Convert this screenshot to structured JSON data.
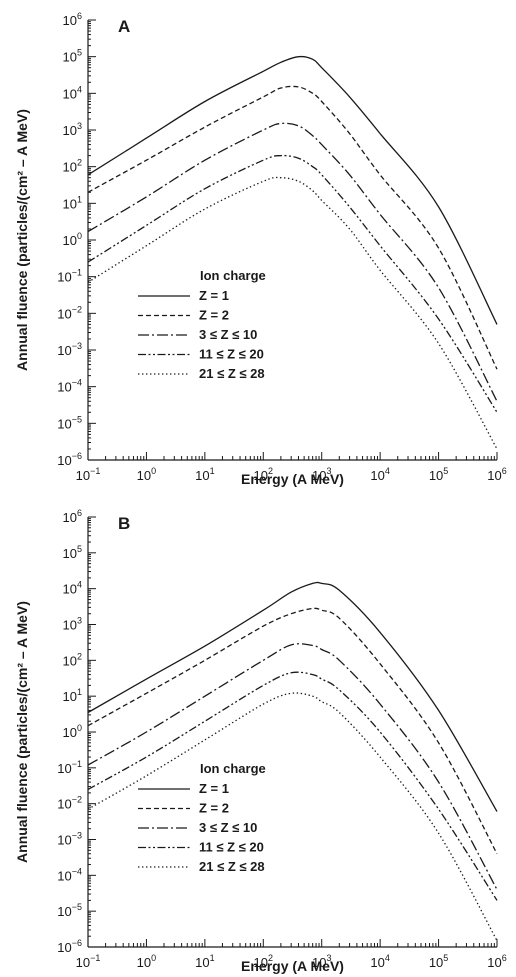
{
  "chart_data": [
    {
      "type": "line",
      "panel_label": "A",
      "xlabel": "Energy (A MeV)",
      "ylabel": "Annual fluence (particles/(cm² – A MeV)",
      "x_scale": "log",
      "y_scale": "log",
      "xlim": [
        0.1,
        1000000
      ],
      "ylim": [
        1e-06,
        1000000
      ],
      "x_ticks": [
        "10^-1",
        "10^0",
        "10^1",
        "10^2",
        "10^3",
        "10^4",
        "10^5",
        "10^6"
      ],
      "y_ticks": [
        "10^-6",
        "10^-5",
        "10^-4",
        "10^-3",
        "10^-2",
        "10^-1",
        "10^0",
        "10^1",
        "10^2",
        "10^3",
        "10^4",
        "10^5",
        "10^6"
      ],
      "grid": false,
      "legend": {
        "title": "Ion charge",
        "placement": "lower-left"
      },
      "series": [
        {
          "name": "Z = 1",
          "style": "solid",
          "x": [
            0.1,
            1,
            10,
            100,
            200,
            400,
            700,
            1000,
            3000,
            10000,
            100000,
            1000000
          ],
          "y": [
            60,
            600,
            6000,
            40000,
            70000,
            100000,
            85000,
            50000,
            8000,
            800,
            8,
            0.005
          ]
        },
        {
          "name": "Z = 2",
          "style": "dashed",
          "x": [
            0.1,
            1,
            10,
            100,
            200,
            400,
            700,
            1000,
            3000,
            10000,
            100000,
            1000000
          ],
          "y": [
            20,
            150,
            1200,
            8000,
            14000,
            15000,
            10000,
            6000,
            800,
            60,
            0.6,
            0.0003
          ]
        },
        {
          "name": "3 ≤ Z ≤ 10",
          "style": "long-dash-dot",
          "x": [
            0.1,
            1,
            10,
            100,
            200,
            400,
            700,
            1000,
            3000,
            10000,
            100000,
            1000000
          ],
          "y": [
            1.7,
            15,
            150,
            1000,
            1500,
            1300,
            700,
            400,
            60,
            5,
            0.05,
            4e-05
          ]
        },
        {
          "name": "11 ≤ Z ≤ 20",
          "style": "dash-dot-dot",
          "x": [
            0.1,
            1,
            10,
            100,
            200,
            400,
            700,
            1000,
            3000,
            10000,
            100000,
            1000000
          ],
          "y": [
            0.25,
            2.5,
            25,
            150,
            200,
            170,
            100,
            60,
            8,
            0.7,
            0.007,
            2e-05
          ]
        },
        {
          "name": "21 ≤ Z ≤ 28",
          "style": "dotted",
          "x": [
            0.1,
            1,
            10,
            100,
            200,
            400,
            700,
            1000,
            3000,
            10000,
            100000,
            1000000
          ],
          "y": [
            0.07,
            0.7,
            7,
            40,
            50,
            40,
            22,
            12,
            2,
            0.15,
            0.0015,
            2e-06
          ]
        }
      ]
    },
    {
      "type": "line",
      "panel_label": "B",
      "xlabel": "Energy (A MeV)",
      "ylabel": "Annual fluence (particles/(cm² – A MeV)",
      "x_scale": "log",
      "y_scale": "log",
      "xlim": [
        0.1,
        1000000
      ],
      "ylim": [
        1e-06,
        1000000
      ],
      "x_ticks": [
        "10^-1",
        "10^0",
        "10^1",
        "10^2",
        "10^3",
        "10^4",
        "10^5",
        "10^6"
      ],
      "y_ticks": [
        "10^-6",
        "10^-5",
        "10^-4",
        "10^-3",
        "10^-2",
        "10^-1",
        "10^0",
        "10^1",
        "10^2",
        "10^3",
        "10^4",
        "10^5",
        "10^6"
      ],
      "grid": false,
      "legend": {
        "title": "Ion charge",
        "placement": "lower-left"
      },
      "series": [
        {
          "name": "Z = 1",
          "style": "solid",
          "x": [
            0.1,
            1,
            10,
            100,
            300,
            700,
            1000,
            2000,
            10000,
            100000,
            1000000
          ],
          "y": [
            3.5,
            30,
            250,
            2500,
            8000,
            14000,
            14000,
            9000,
            600,
            4,
            0.006
          ]
        },
        {
          "name": "Z = 2",
          "style": "dashed",
          "x": [
            0.1,
            1,
            10,
            100,
            300,
            700,
            1000,
            2000,
            10000,
            100000,
            1000000
          ],
          "y": [
            1.5,
            12,
            100,
            900,
            2000,
            2800,
            2500,
            1500,
            80,
            0.5,
            0.0004
          ]
        },
        {
          "name": "3 ≤ Z ≤ 10",
          "style": "long-dash-dot",
          "x": [
            0.1,
            1,
            10,
            100,
            300,
            700,
            1000,
            2000,
            10000,
            100000,
            1000000
          ],
          "y": [
            0.12,
            1,
            10,
            100,
            270,
            260,
            200,
            100,
            6,
            0.04,
            4e-05
          ]
        },
        {
          "name": "11 ≤ Z ≤ 20",
          "style": "dash-dot-dot",
          "x": [
            0.1,
            1,
            10,
            100,
            300,
            700,
            1000,
            2000,
            10000,
            100000,
            1000000
          ],
          "y": [
            0.025,
            0.2,
            2,
            20,
            45,
            40,
            30,
            15,
            1,
            0.007,
            2e-05
          ]
        },
        {
          "name": "21 ≤ Z ≤ 28",
          "style": "dotted",
          "x": [
            0.1,
            1,
            10,
            100,
            300,
            700,
            1000,
            2000,
            10000,
            100000,
            1000000
          ],
          "y": [
            0.007,
            0.06,
            0.6,
            6,
            12,
            10,
            7,
            3.5,
            0.2,
            0.0015,
            1.5e-06
          ]
        }
      ]
    }
  ]
}
